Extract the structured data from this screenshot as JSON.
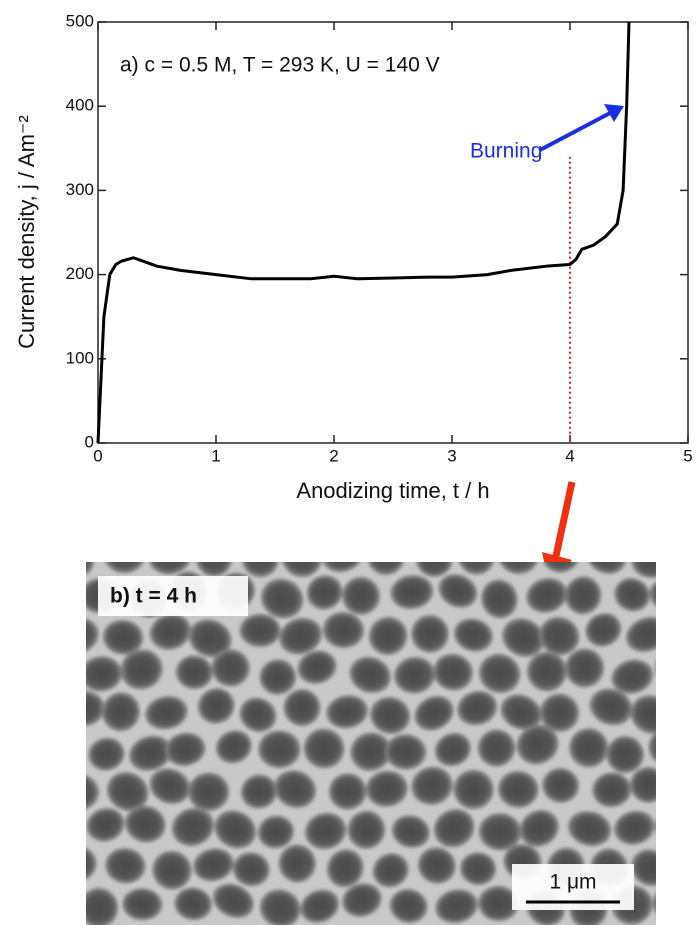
{
  "chart_data": {
    "type": "line",
    "title": "a) c = 0.5 M, T = 293 K, U = 140 V",
    "x_label": "Anodizing time, t / h",
    "y_label": "Current density, j / Am⁻²",
    "annotation": "Burning",
    "x": [
      0,
      0.02,
      0.05,
      0.1,
      0.15,
      0.2,
      0.3,
      0.4,
      0.5,
      0.7,
      1,
      1.3,
      1.5,
      1.8,
      2,
      2.2,
      2.5,
      2.8,
      3,
      3.3,
      3.5,
      3.8,
      4,
      4.05,
      4.1,
      4.2,
      4.3,
      4.4,
      4.45,
      4.48,
      4.5
    ],
    "series": [
      {
        "color": "#000000",
        "values": [
          0,
          60,
          150,
          200,
          212,
          216,
          220,
          215,
          210,
          205,
          200,
          195,
          195,
          195,
          198,
          195,
          196,
          197,
          197,
          200,
          205,
          210,
          212,
          218,
          230,
          235,
          245,
          260,
          300,
          400,
          500
        ]
      }
    ],
    "marker_line": {
      "x": 4,
      "top": 340,
      "color": "#e02020"
    },
    "xlim": [
      0,
      5
    ],
    "ylim": [
      0,
      500
    ],
    "xticks": [
      0,
      1,
      2,
      3,
      4,
      5
    ],
    "yticks": [
      0,
      100,
      200,
      300,
      400,
      500
    ]
  },
  "image": {
    "label": "b) t = 4 h",
    "scale_bar": "1 μm"
  }
}
